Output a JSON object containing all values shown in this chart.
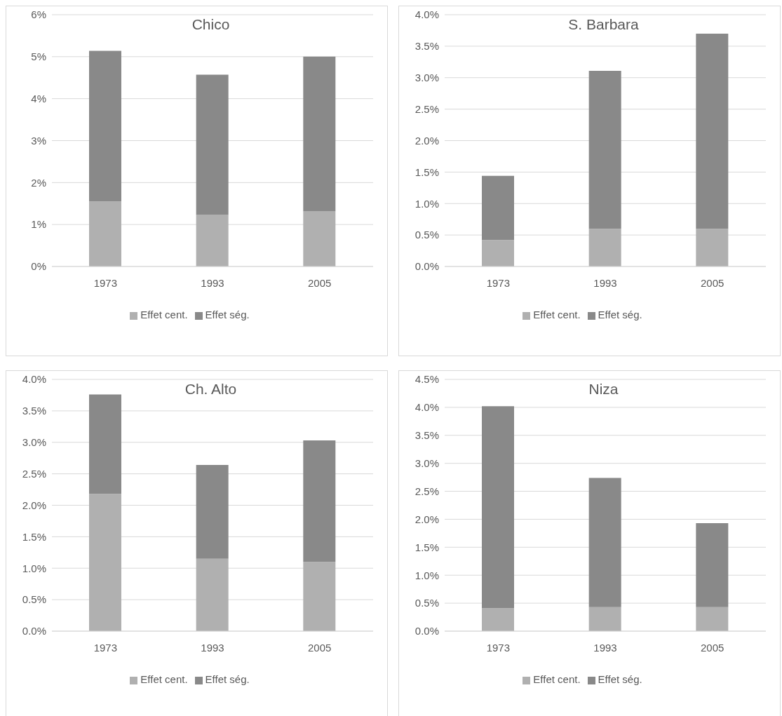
{
  "chart_data": [
    {
      "type": "bar",
      "title": "Chico",
      "categories": [
        "1973",
        "1993",
        "2005"
      ],
      "stacked": true,
      "ylim": [
        0,
        6
      ],
      "yticks": [
        {
          "value": 0,
          "label": "0%"
        },
        {
          "value": 1,
          "label": "1%"
        },
        {
          "value": 2,
          "label": "2%"
        },
        {
          "value": 3,
          "label": "3%"
        },
        {
          "value": 4,
          "label": "4%"
        },
        {
          "value": 5,
          "label": "5%"
        },
        {
          "value": 6,
          "label": "6%"
        }
      ],
      "grid": "y",
      "legend": "bottom",
      "series": [
        {
          "name": "Effet cent.",
          "color": "#b0b0b0",
          "values": [
            1.55,
            1.23,
            1.31
          ]
        },
        {
          "name": "Effet ség.",
          "color": "#898989",
          "values": [
            3.59,
            3.34,
            3.69
          ]
        }
      ]
    },
    {
      "type": "bar",
      "title": "S. Barbara",
      "categories": [
        "1973",
        "1993",
        "2005"
      ],
      "stacked": true,
      "ylim": [
        0,
        4
      ],
      "yticks": [
        {
          "value": 0,
          "label": "0.0%"
        },
        {
          "value": 0.5,
          "label": "0.5%"
        },
        {
          "value": 1,
          "label": "1.0%"
        },
        {
          "value": 1.5,
          "label": "1.5%"
        },
        {
          "value": 2,
          "label": "2.0%"
        },
        {
          "value": 2.5,
          "label": "2.5%"
        },
        {
          "value": 3,
          "label": "3.0%"
        },
        {
          "value": 3.5,
          "label": "3.5%"
        },
        {
          "value": 4,
          "label": "4.0%"
        }
      ],
      "grid": "y",
      "legend": "bottom",
      "series": [
        {
          "name": "Effet cent.",
          "color": "#b0b0b0",
          "values": [
            0.42,
            0.6,
            0.6
          ]
        },
        {
          "name": "Effet ség.",
          "color": "#898989",
          "values": [
            1.02,
            2.51,
            3.1
          ]
        }
      ]
    },
    {
      "type": "bar",
      "title": "Ch. Alto",
      "categories": [
        "1973",
        "1993",
        "2005"
      ],
      "stacked": true,
      "ylim": [
        0,
        4
      ],
      "yticks": [
        {
          "value": 0,
          "label": "0.0%"
        },
        {
          "value": 0.5,
          "label": "0.5%"
        },
        {
          "value": 1,
          "label": "1.0%"
        },
        {
          "value": 1.5,
          "label": "1.5%"
        },
        {
          "value": 2,
          "label": "2.0%"
        },
        {
          "value": 2.5,
          "label": "2.5%"
        },
        {
          "value": 3,
          "label": "3.0%"
        },
        {
          "value": 3.5,
          "label": "3.5%"
        },
        {
          "value": 4,
          "label": "4.0%"
        }
      ],
      "grid": "y",
      "legend": "bottom",
      "series": [
        {
          "name": "Effet cent.",
          "color": "#b0b0b0",
          "values": [
            2.18,
            1.15,
            1.1
          ]
        },
        {
          "name": "Effet ség.",
          "color": "#898989",
          "values": [
            1.58,
            1.49,
            1.93
          ]
        }
      ]
    },
    {
      "type": "bar",
      "title": "Niza",
      "categories": [
        "1973",
        "1993",
        "2005"
      ],
      "stacked": true,
      "ylim": [
        0,
        4.5
      ],
      "yticks": [
        {
          "value": 0,
          "label": "0.0%"
        },
        {
          "value": 0.5,
          "label": "0.5%"
        },
        {
          "value": 1,
          "label": "1.0%"
        },
        {
          "value": 1.5,
          "label": "1.5%"
        },
        {
          "value": 2,
          "label": "2.0%"
        },
        {
          "value": 2.5,
          "label": "2.5%"
        },
        {
          "value": 3,
          "label": "3.0%"
        },
        {
          "value": 3.5,
          "label": "3.5%"
        },
        {
          "value": 4,
          "label": "4.0%"
        },
        {
          "value": 4.5,
          "label": "4.5%"
        }
      ],
      "grid": "y",
      "legend": "bottom",
      "series": [
        {
          "name": "Effet cent.",
          "color": "#b0b0b0",
          "values": [
            0.41,
            0.43,
            0.43
          ]
        },
        {
          "name": "Effet ség.",
          "color": "#898989",
          "values": [
            3.61,
            2.31,
            1.5
          ]
        }
      ]
    }
  ]
}
